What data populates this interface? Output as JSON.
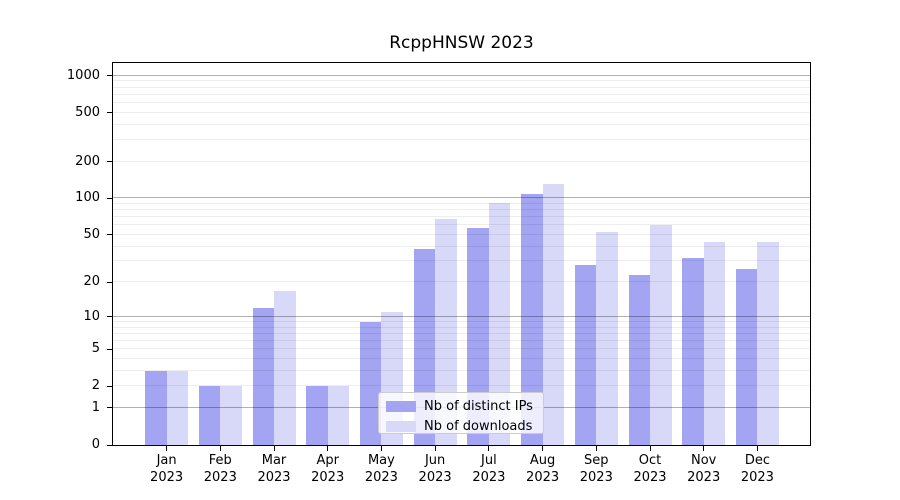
{
  "title": "RcppHNSW 2023",
  "chart_data": {
    "type": "bar",
    "title": "RcppHNSW 2023",
    "months": [
      "Jan",
      "Feb",
      "Mar",
      "Apr",
      "May",
      "Jun",
      "Jul",
      "Aug",
      "Sep",
      "Oct",
      "Nov",
      "Dec"
    ],
    "year": "2023",
    "series": [
      {
        "name": "Nb of distinct IPs",
        "color": "#a3a5f2",
        "values": [
          3,
          2,
          12,
          2,
          9,
          38,
          57,
          108,
          28,
          23,
          32,
          26
        ]
      },
      {
        "name": "Nb of downloads",
        "color": "#d8d9f8",
        "values": [
          3,
          2,
          17,
          2,
          11,
          67,
          92,
          130,
          53,
          60,
          44,
          44
        ]
      }
    ],
    "y_scale": "log10(value+1)",
    "y_ticks": [
      0,
      1,
      2,
      5,
      10,
      20,
      50,
      100,
      200,
      500,
      1000
    ],
    "major_gridlines_at": [
      1,
      10,
      100,
      1000
    ],
    "ylim": [
      0,
      1270
    ],
    "grid": true,
    "legend_position": "lower center inside axes"
  },
  "colors": {
    "axis": "#000000",
    "grid_major": "rgba(0,0,0,0.30)",
    "grid_minor": "rgba(0,0,0,0.07)",
    "legend_border": "#cccccc",
    "legend_bg": "rgba(255,255,255,0.8)"
  }
}
